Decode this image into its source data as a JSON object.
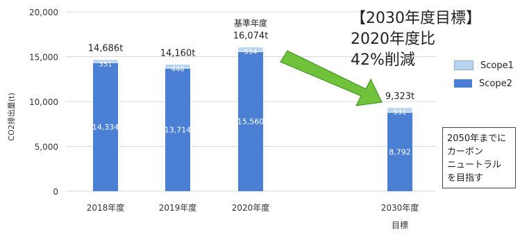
{
  "chart_data": {
    "type": "bar",
    "stacked": true,
    "ylabel": "CO2排出量(t)",
    "ylim": [
      0,
      20000
    ],
    "yticks": [
      0,
      5000,
      10000,
      15000,
      20000
    ],
    "ytick_labels": [
      "0",
      "5,000",
      "10,000",
      "15,000",
      "20,000"
    ],
    "grid": true,
    "legend_position": "right",
    "categories": [
      "2018年度",
      "2019年度",
      "2020年度",
      "2030年度"
    ],
    "category_sublabels": [
      "",
      "",
      "",
      "目標"
    ],
    "series": [
      {
        "name": "Scope2",
        "color": "#4a7fd4",
        "values": [
          14334,
          13714,
          15560,
          8792
        ],
        "labels": [
          "14,334",
          "13,714",
          "15,560",
          "8,792"
        ]
      },
      {
        "name": "Scope1",
        "color": "#b9d4f0",
        "values": [
          351,
          446,
          514,
          531
        ],
        "labels": [
          "351",
          "446",
          "514",
          "531"
        ]
      }
    ],
    "totals": [
      "14,686t",
      "14,160t",
      "16,074t",
      "9,323t"
    ],
    "annotations": {
      "base_year_label": "基準年度",
      "base_year_index": 2
    }
  },
  "target": {
    "title": "【2030年度目標】",
    "line1": "2020年度比",
    "line2": "42%削減"
  },
  "note": {
    "lines": [
      "2050年までに",
      "カーボン",
      "ニュートラル",
      "を目指す"
    ]
  },
  "colors": {
    "arrow_fill": "#6fc23a",
    "arrow_stroke": "#3a8a1a",
    "grid": "#d9d9d9"
  }
}
